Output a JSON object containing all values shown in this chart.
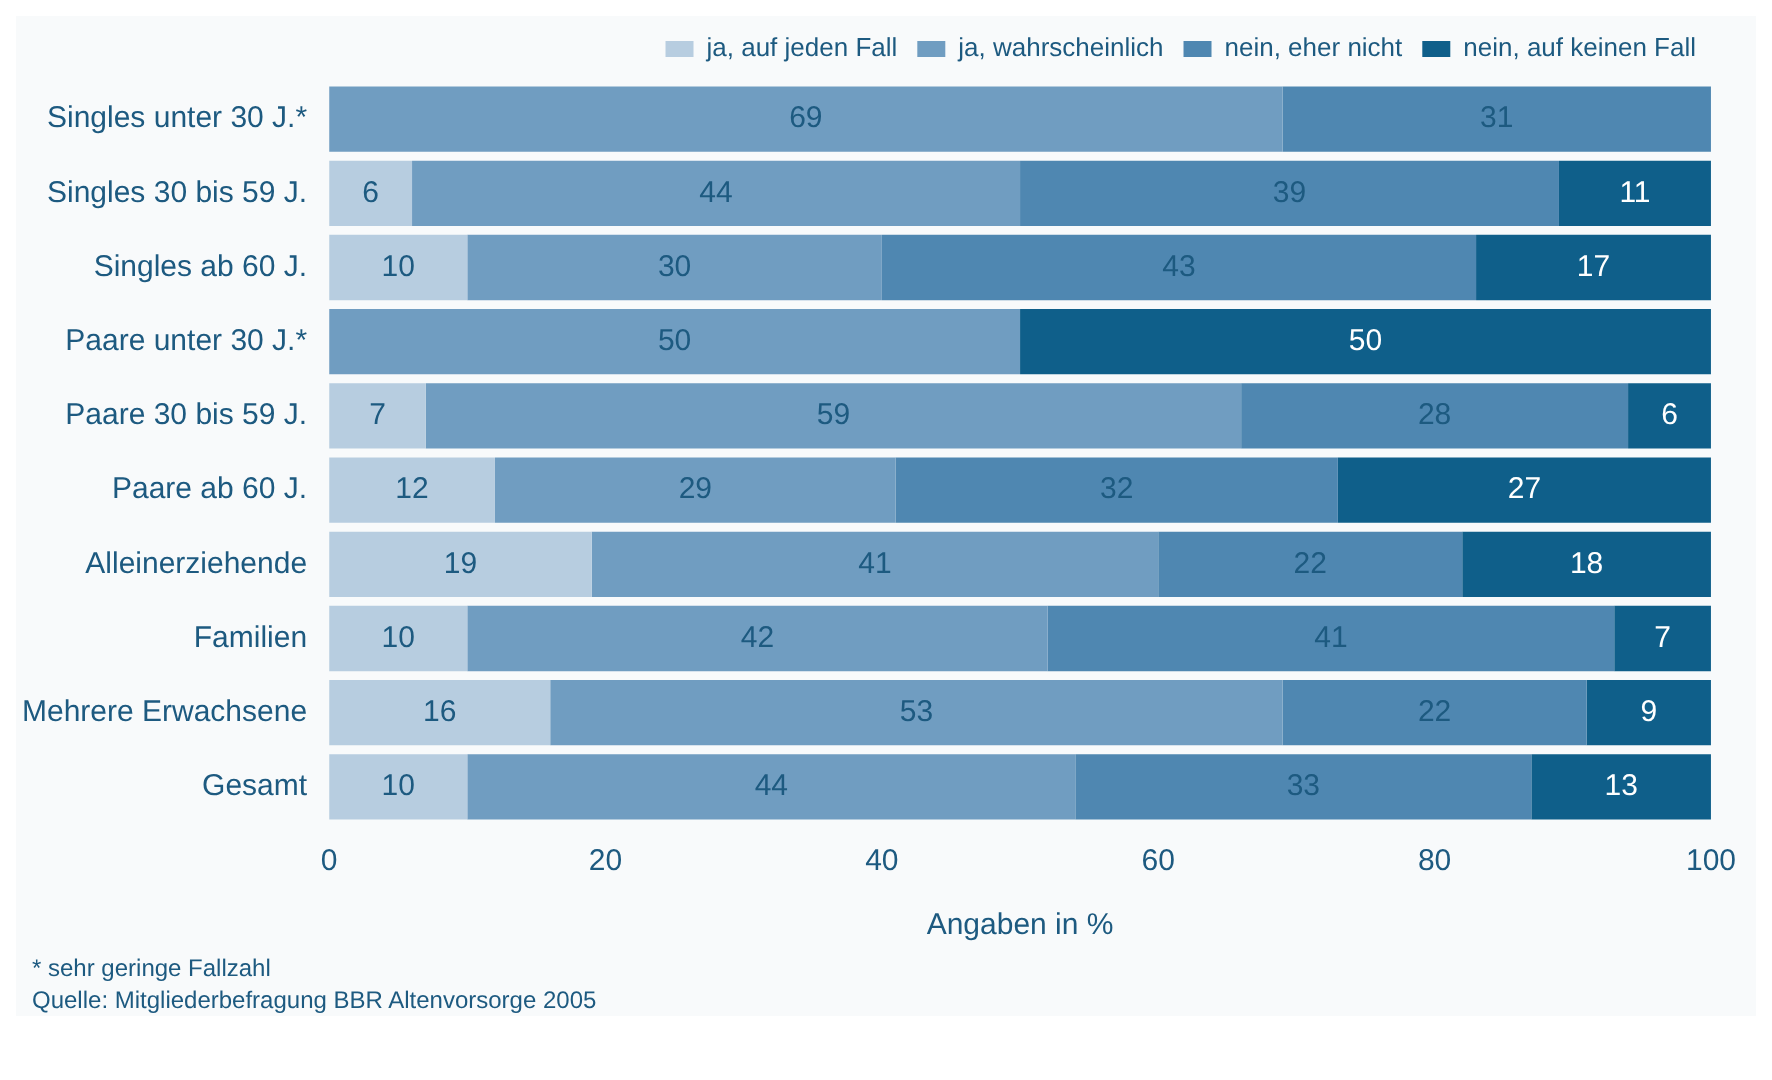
{
  "chart_data": {
    "type": "bar",
    "orientation": "horizontal",
    "stacked": true,
    "categories": [
      "Singles unter 30 J.*",
      "Singles 30 bis 59 J.",
      "Singles ab 60 J.",
      "Paare unter 30 J.*",
      "Paare 30 bis 59 J.",
      "Paare ab 60 J.",
      "Alleinerziehende",
      "Familien",
      "Mehrere Erwachsene",
      "Gesamt"
    ],
    "series": [
      {
        "name": "ja, auf jeden Fall",
        "color": "#b7cde0",
        "values": [
          null,
          6,
          10,
          null,
          7,
          12,
          19,
          10,
          16,
          10
        ]
      },
      {
        "name": "ja, wahrscheinlich",
        "color": "#709dc1",
        "values": [
          69,
          44,
          30,
          50,
          59,
          29,
          41,
          42,
          53,
          44
        ]
      },
      {
        "name": "nein, eher nicht",
        "color": "#4f87b1",
        "values": [
          31,
          39,
          43,
          null,
          28,
          32,
          22,
          41,
          22,
          33
        ]
      },
      {
        "name": "nein, auf keinen Fall",
        "color": "#0f5f8a",
        "values": [
          null,
          11,
          17,
          50,
          6,
          27,
          18,
          7,
          9,
          13
        ]
      }
    ],
    "xlabel": "Angaben in %",
    "xlim": [
      0,
      100
    ],
    "xticks": [
      0,
      20,
      40,
      60,
      80,
      100
    ],
    "data_labels": true,
    "grid": false,
    "legend": "top right",
    "annotations": [
      "* sehr geringe Fallzahl",
      "Quelle: Mitgliederbefragung BBR Altenvorsorge 2005"
    ]
  }
}
